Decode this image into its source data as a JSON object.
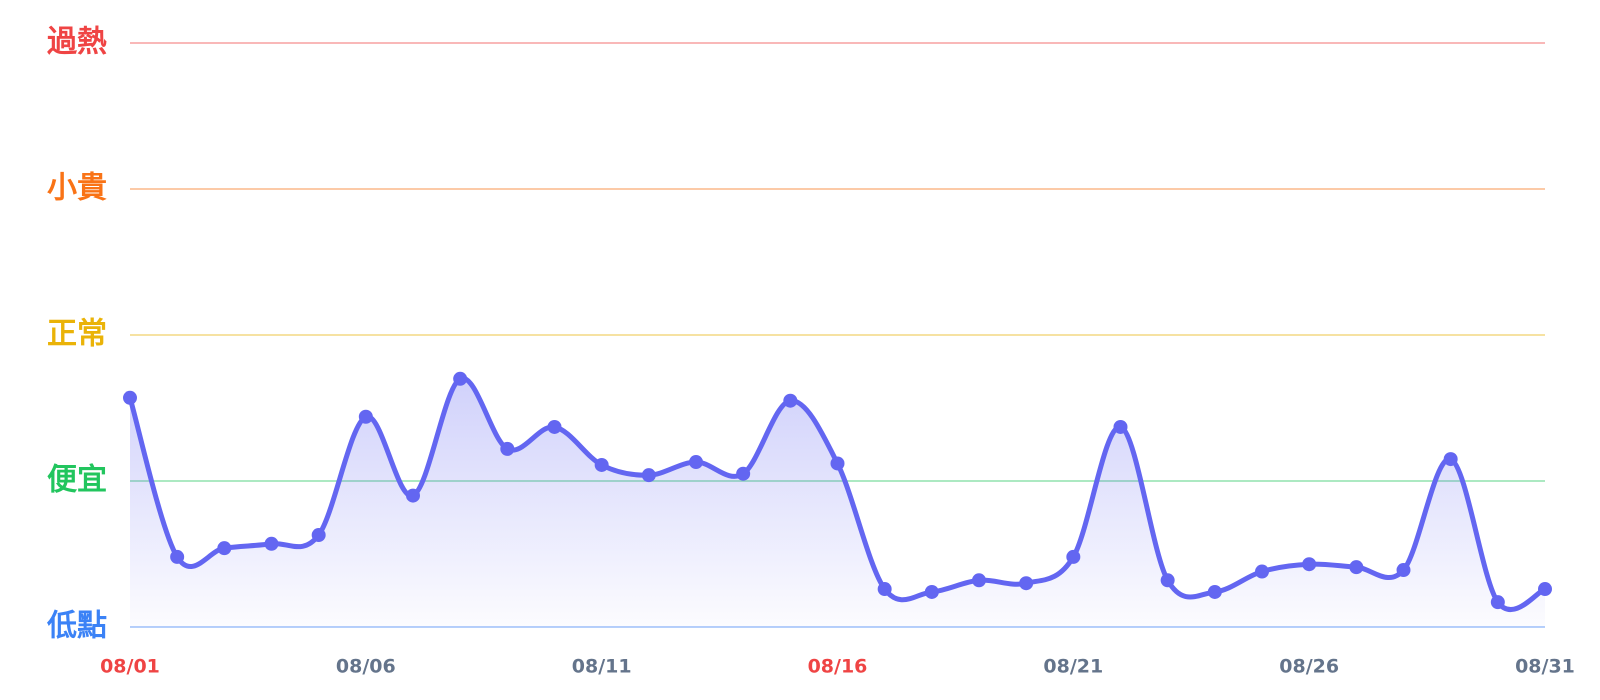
{
  "chart_data": {
    "type": "line",
    "categories": [
      "08/01",
      null,
      null,
      null,
      null,
      "08/06",
      null,
      null,
      null,
      null,
      "08/11",
      null,
      null,
      null,
      null,
      "08/16",
      null,
      null,
      null,
      null,
      "08/21",
      null,
      null,
      null,
      null,
      "08/26",
      null,
      null,
      null,
      null,
      "08/31"
    ],
    "category_label_colors": [
      "#ef4444",
      null,
      null,
      null,
      null,
      "#64748b",
      null,
      null,
      null,
      null,
      "#64748b",
      null,
      null,
      null,
      null,
      "#ef4444",
      null,
      null,
      null,
      null,
      "#64748b",
      null,
      null,
      null,
      null,
      "#64748b",
      null,
      null,
      null,
      null,
      "#64748b"
    ],
    "values": [
      1.57,
      0.48,
      0.54,
      0.57,
      0.63,
      1.44,
      0.9,
      1.7,
      1.22,
      1.37,
      1.11,
      1.04,
      1.13,
      1.05,
      1.55,
      1.12,
      0.26,
      0.24,
      0.32,
      0.3,
      0.48,
      1.37,
      0.32,
      0.24,
      0.38,
      0.43,
      0.41,
      0.39,
      1.15,
      0.17,
      0.26
    ],
    "color": "#6366f1",
    "ylim": [
      0,
      4
    ],
    "yticks": [
      {
        "value": 0,
        "label": "低點"
      },
      {
        "value": 1,
        "label": "便宜"
      },
      {
        "value": 2,
        "label": "正常"
      },
      {
        "value": 3,
        "label": "小貴"
      },
      {
        "value": 4,
        "label": "過熱"
      }
    ],
    "ytick_colors": [
      "#3b82f6",
      "#22c55e",
      "#eab308",
      "#f97316",
      "#ef4444"
    ],
    "grid": true
  }
}
